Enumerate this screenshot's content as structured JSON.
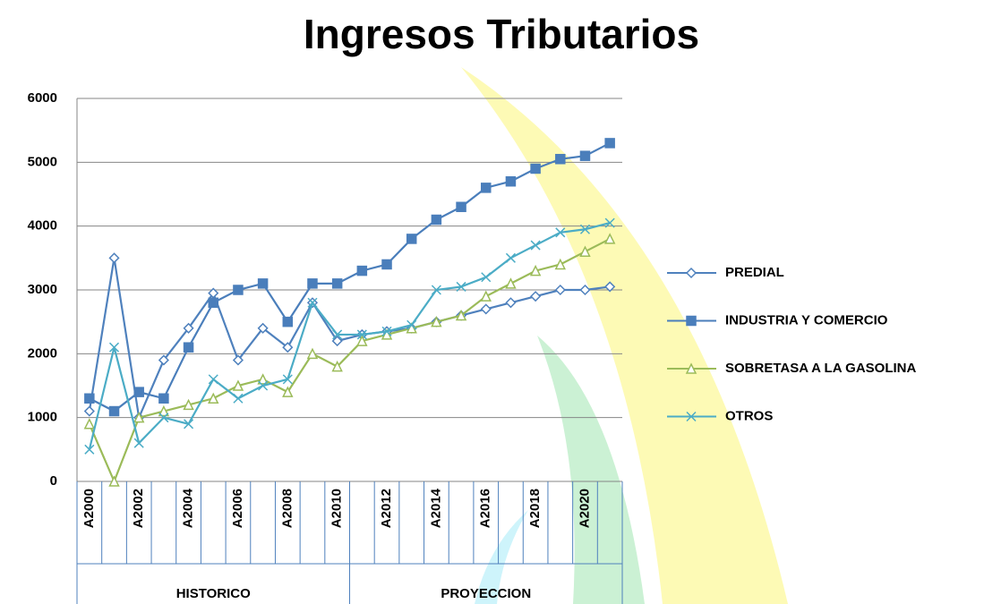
{
  "chart_data": {
    "type": "line",
    "title": "Ingresos Tributarios",
    "groups": [
      {
        "label": "HISTORICO",
        "categories": [
          "A2000",
          null,
          "A2002",
          null,
          "A2004",
          null,
          "A2006",
          null,
          "A2008",
          null,
          "A2010"
        ]
      },
      {
        "label": "PROYECCION",
        "categories": [
          null,
          "A2012",
          null,
          "A2014",
          null,
          "A2016",
          null,
          "A2018",
          null,
          "A2020",
          null
        ]
      }
    ],
    "series": [
      {
        "name": "PREDIAL",
        "color": "#4f81bd",
        "marker": "diamond",
        "values": [
          1100,
          3500,
          1000,
          1900,
          2400,
          2950,
          1900,
          2400,
          2100,
          2800,
          2200,
          2300,
          2350,
          2400,
          2500,
          2600,
          2700,
          2800,
          2900,
          3000,
          3000,
          3050
        ]
      },
      {
        "name": "INDUSTRIA Y COMERCIO",
        "color": "#4a7ebb",
        "marker": "square",
        "values": [
          1300,
          1100,
          1400,
          1300,
          2100,
          2800,
          3000,
          3100,
          2500,
          3100,
          3100,
          3300,
          3400,
          3800,
          4100,
          4300,
          4600,
          4700,
          4900,
          5050,
          5100,
          5300
        ]
      },
      {
        "name": "SOBRETASA A LA GASOLINA",
        "color": "#9bbb59",
        "marker": "triangle",
        "values": [
          900,
          0,
          1000,
          1100,
          1200,
          1300,
          1500,
          1600,
          1400,
          2000,
          1800,
          2200,
          2300,
          2400,
          2500,
          2600,
          2900,
          3100,
          3300,
          3400,
          3600,
          3800
        ]
      },
      {
        "name": "OTROS",
        "color": "#4bacc6",
        "marker": "x",
        "values": [
          500,
          2100,
          600,
          1000,
          900,
          1600,
          1300,
          1500,
          1600,
          2800,
          2300,
          2300,
          2350,
          2450,
          3000,
          3050,
          3200,
          3500,
          3700,
          3900,
          3950,
          4050
        ]
      }
    ],
    "ylim": [
      0,
      6000
    ],
    "yticks": [
      0,
      1000,
      2000,
      3000,
      4000,
      5000,
      6000
    ],
    "grid": true,
    "legend": "right"
  }
}
